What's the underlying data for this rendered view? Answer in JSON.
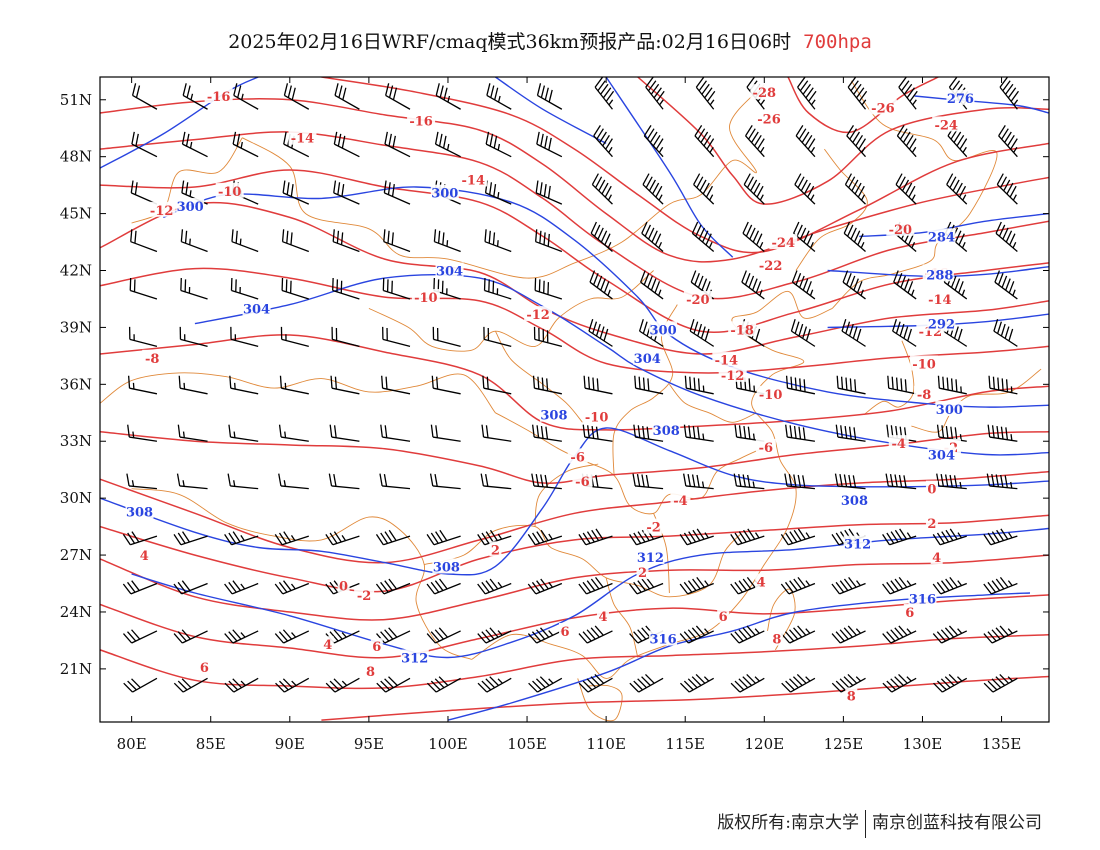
{
  "header": {
    "title": "2025年02月16日WRF/cmaq模式36km预报产品:02月16日06时",
    "level": "700hpa"
  },
  "axes": {
    "lat_labels": [
      "51N",
      "48N",
      "45N",
      "42N",
      "39N",
      "36N",
      "33N",
      "30N",
      "27N",
      "24N",
      "21N"
    ],
    "lat_values": [
      51,
      48,
      45,
      42,
      39,
      36,
      33,
      30,
      27,
      24,
      21
    ],
    "lon_labels": [
      "80E",
      "85E",
      "90E",
      "95E",
      "100E",
      "105E",
      "110E",
      "115E",
      "120E",
      "125E",
      "130E",
      "135E"
    ],
    "lon_values": [
      80,
      85,
      90,
      95,
      100,
      105,
      110,
      115,
      120,
      125,
      130,
      135
    ],
    "lon_range": [
      78,
      138
    ],
    "lat_range": [
      18,
      52
    ]
  },
  "colors": {
    "temperature": "#e03c3c",
    "height": "#2a45e0",
    "boundary": "#e0893a",
    "wind": "#000000"
  },
  "temperature_labels": [
    {
      "text": "-16",
      "lon": 85.5,
      "lat": 51.2
    },
    {
      "text": "-16",
      "lon": 98.3,
      "lat": 49.9
    },
    {
      "text": "-14",
      "lon": 90.8,
      "lat": 49.0
    },
    {
      "text": "-14",
      "lon": 101.6,
      "lat": 46.8
    },
    {
      "text": "-10",
      "lon": 86.2,
      "lat": 46.2
    },
    {
      "text": "-12",
      "lon": 81.9,
      "lat": 45.2
    },
    {
      "text": "-10",
      "lon": 98.6,
      "lat": 40.6
    },
    {
      "text": "-12",
      "lon": 105.7,
      "lat": 39.7
    },
    {
      "text": "-8",
      "lon": 81.3,
      "lat": 37.4
    },
    {
      "text": "-28",
      "lon": 120.0,
      "lat": 51.4
    },
    {
      "text": "-26",
      "lon": 120.3,
      "lat": 50.0
    },
    {
      "text": "-26",
      "lon": 127.5,
      "lat": 50.6
    },
    {
      "text": "-24",
      "lon": 131.5,
      "lat": 49.7
    },
    {
      "text": "-24",
      "lon": 121.2,
      "lat": 43.5
    },
    {
      "text": "-22",
      "lon": 120.4,
      "lat": 42.3
    },
    {
      "text": "-20",
      "lon": 128.6,
      "lat": 44.2
    },
    {
      "text": "-20",
      "lon": 115.8,
      "lat": 40.5
    },
    {
      "text": "-18",
      "lon": 118.6,
      "lat": 38.9
    },
    {
      "text": "-16",
      "lon": 130.9,
      "lat": 41.9
    },
    {
      "text": "-14",
      "lon": 117.6,
      "lat": 37.3
    },
    {
      "text": "-14",
      "lon": 131.1,
      "lat": 40.5
    },
    {
      "text": "-12",
      "lon": 118.0,
      "lat": 36.5
    },
    {
      "text": "-12",
      "lon": 130.5,
      "lat": 38.8
    },
    {
      "text": "-10",
      "lon": 120.4,
      "lat": 35.5
    },
    {
      "text": "-10",
      "lon": 130.1,
      "lat": 37.1
    },
    {
      "text": "-8",
      "lon": 130.1,
      "lat": 35.5
    },
    {
      "text": "-6",
      "lon": 120.1,
      "lat": 32.7
    },
    {
      "text": "-4",
      "lon": 128.5,
      "lat": 32.9
    },
    {
      "text": "-2",
      "lon": 131.8,
      "lat": 32.7
    },
    {
      "text": "-6",
      "lon": 108.2,
      "lat": 32.2
    },
    {
      "text": "-10",
      "lon": 109.4,
      "lat": 34.3
    },
    {
      "text": "-6",
      "lon": 108.5,
      "lat": 30.9
    },
    {
      "text": "-4",
      "lon": 114.7,
      "lat": 29.9
    },
    {
      "text": "-2",
      "lon": 113.0,
      "lat": 28.5
    },
    {
      "text": "0",
      "lon": 130.6,
      "lat": 30.5
    },
    {
      "text": "2",
      "lon": 130.6,
      "lat": 28.7
    },
    {
      "text": "4",
      "lon": 130.9,
      "lat": 26.9
    },
    {
      "text": "2",
      "lon": 112.3,
      "lat": 26.1
    },
    {
      "text": "4",
      "lon": 119.8,
      "lat": 25.6
    },
    {
      "text": "6",
      "lon": 117.4,
      "lat": 23.8
    },
    {
      "text": "8",
      "lon": 120.8,
      "lat": 22.6
    },
    {
      "text": "6",
      "lon": 129.2,
      "lat": 24.0
    },
    {
      "text": "8",
      "lon": 125.5,
      "lat": 19.6
    },
    {
      "text": "2",
      "lon": 103.0,
      "lat": 27.3
    },
    {
      "text": "4",
      "lon": 109.8,
      "lat": 23.8
    },
    {
      "text": "6",
      "lon": 107.4,
      "lat": 23.0
    },
    {
      "text": "-2",
      "lon": 94.7,
      "lat": 24.9
    },
    {
      "text": "0",
      "lon": 93.4,
      "lat": 25.4
    },
    {
      "text": "4",
      "lon": 80.8,
      "lat": 27.0
    },
    {
      "text": "4",
      "lon": 92.4,
      "lat": 22.3
    },
    {
      "text": "6",
      "lon": 95.5,
      "lat": 22.2
    },
    {
      "text": "6",
      "lon": 84.6,
      "lat": 21.1
    },
    {
      "text": "8",
      "lon": 95.1,
      "lat": 20.9
    }
  ],
  "height_labels": [
    {
      "text": "276",
      "lon": 132.4,
      "lat": 51.1
    },
    {
      "text": "300",
      "lon": 99.8,
      "lat": 46.1
    },
    {
      "text": "300",
      "lon": 83.7,
      "lat": 45.4
    },
    {
      "text": "304",
      "lon": 100.1,
      "lat": 42.0
    },
    {
      "text": "304",
      "lon": 87.9,
      "lat": 40.0
    },
    {
      "text": "300",
      "lon": 113.6,
      "lat": 38.9
    },
    {
      "text": "304",
      "lon": 112.6,
      "lat": 37.4
    },
    {
      "text": "308",
      "lon": 106.7,
      "lat": 34.4
    },
    {
      "text": "308",
      "lon": 113.8,
      "lat": 33.6
    },
    {
      "text": "300",
      "lon": 131.7,
      "lat": 34.7
    },
    {
      "text": "304",
      "lon": 131.2,
      "lat": 32.3
    },
    {
      "text": "308",
      "lon": 125.7,
      "lat": 29.9
    },
    {
      "text": "312",
      "lon": 112.8,
      "lat": 26.9
    },
    {
      "text": "312",
      "lon": 125.9,
      "lat": 27.6
    },
    {
      "text": "308",
      "lon": 99.9,
      "lat": 26.4
    },
    {
      "text": "316",
      "lon": 113.6,
      "lat": 22.6
    },
    {
      "text": "316",
      "lon": 130.0,
      "lat": 24.7
    },
    {
      "text": "312",
      "lon": 97.9,
      "lat": 21.6
    },
    {
      "text": "284",
      "lon": 131.2,
      "lat": 43.8
    },
    {
      "text": "288",
      "lon": 131.1,
      "lat": 41.8
    },
    {
      "text": "292",
      "lon": 131.2,
      "lat": 39.2
    },
    {
      "text": "308",
      "lon": 80.5,
      "lat": 29.3
    }
  ],
  "footer": {
    "copyright": "版权所有:南京大学",
    "company": "南京创蓝科技有限公司"
  }
}
